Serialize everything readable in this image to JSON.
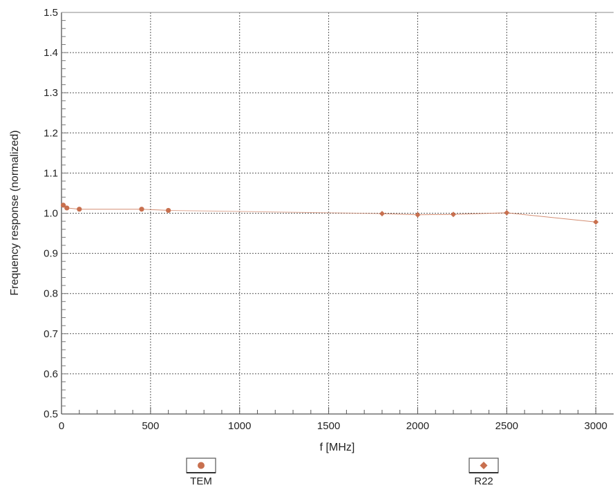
{
  "chart_data": {
    "type": "scatter",
    "xlabel": "f [MHz]",
    "ylabel": "Frequency response (normalized)",
    "xlim": [
      0,
      3100
    ],
    "ylim": [
      0.5,
      1.5
    ],
    "x_ticks": [
      0,
      500,
      1000,
      1500,
      2000,
      2500,
      3000
    ],
    "y_ticks": [
      0.5,
      0.6,
      0.7,
      0.8,
      0.9,
      1.0,
      1.1,
      1.2,
      1.3,
      1.4,
      1.5
    ],
    "x_tick_labels": [
      "0",
      "500",
      "1000",
      "1500",
      "2000",
      "2500",
      "3000"
    ],
    "y_tick_labels": [
      "0.5",
      "0.6",
      "0.7",
      "0.8",
      "0.9",
      "1.0",
      "1.1",
      "1.2",
      "1.3",
      "1.4",
      "1.5"
    ],
    "grid": true,
    "legend_position": "bottom",
    "series": [
      {
        "name": "TEM",
        "marker": "circle",
        "color": "#c8704f",
        "x": [
          10,
          30,
          100,
          450,
          600
        ],
        "y": [
          1.02,
          1.013,
          1.01,
          1.01,
          1.007
        ]
      },
      {
        "name": "R22",
        "marker": "diamond",
        "color": "#c8704f",
        "x": [
          1800,
          2000,
          2200,
          2500,
          3000
        ],
        "y": [
          0.999,
          0.996,
          0.997,
          1.001,
          0.978
        ]
      }
    ]
  }
}
